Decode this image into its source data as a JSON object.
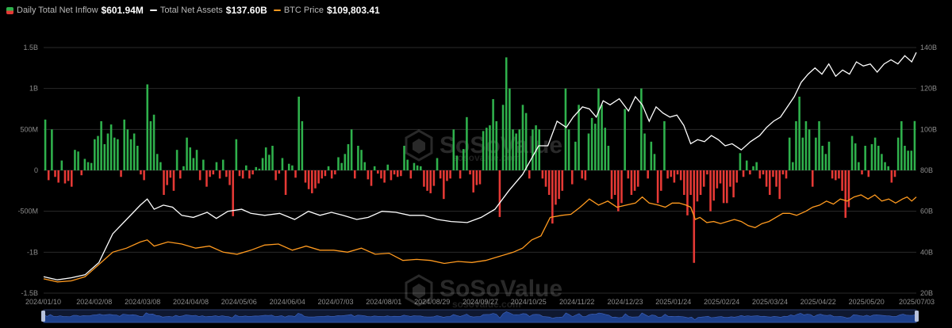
{
  "legend": {
    "inflow_label": "Daily Total Net Inflow",
    "inflow_value": "$601.94M",
    "assets_label": "Total Net Assets",
    "assets_value": "$137.60B",
    "btc_label": "BTC Price",
    "btc_value": "$109,803.41"
  },
  "watermark": {
    "brand": "SoSoValue",
    "site": "sosovalue.com"
  },
  "colors": {
    "positive_bar": "#2fb14c",
    "negative_bar": "#e53935",
    "assets_line": "#ffffff",
    "btc_line": "#ff9a1f",
    "grid": "#2a2a2a",
    "navigator": "#1d3f8a"
  },
  "chart_data": {
    "type": "bar",
    "title": "",
    "grid": true,
    "legend_position": "top-left",
    "x_tick_labels": [
      "2024/01/10",
      "2024/02/08",
      "2024/03/08",
      "2024/04/08",
      "2024/05/06",
      "2024/06/04",
      "2024/07/03",
      "2024/08/01",
      "2024/08/29",
      "2024/09/27",
      "2024/10/25",
      "2024/11/22",
      "2024/12/23",
      "2025/01/24",
      "2025/02/24",
      "2025/03/24",
      "2025/04/22",
      "2025/05/20",
      "2025/07/03"
    ],
    "left_axis": {
      "ticks": [
        "1.5B",
        "1B",
        "500M",
        "0",
        "-500M",
        "-1B",
        "-1.5B"
      ],
      "range": [
        -1500,
        1500
      ],
      "unit": "M"
    },
    "right_axis": {
      "ticks": [
        "140B",
        "120B",
        "100B",
        "80B",
        "60B",
        "40B",
        "20B"
      ],
      "range": [
        20,
        140
      ],
      "unit": "B"
    },
    "series": [
      {
        "name": "Daily Total Net Inflow",
        "type": "bar",
        "axis": "left",
        "values": [
          620,
          -120,
          500,
          -80,
          -150,
          120,
          -160,
          -130,
          -200,
          250,
          230,
          -60,
          140,
          100,
          90,
          380,
          420,
          600,
          320,
          450,
          560,
          400,
          380,
          -80,
          620,
          500,
          380,
          450,
          300,
          -50,
          -120,
          1050,
          600,
          680,
          200,
          100,
          -300,
          -180,
          -90,
          -250,
          250,
          -100,
          50,
          400,
          280,
          150,
          250,
          -120,
          130,
          -200,
          -80,
          -50,
          100,
          -100,
          130,
          -80,
          -180,
          -560,
          380,
          -70,
          -100,
          60,
          -100,
          -50,
          40,
          20,
          150,
          280,
          190,
          300,
          -120,
          -40,
          150,
          -300,
          80,
          60,
          -90,
          900,
          600,
          -150,
          -230,
          -280,
          -220,
          -160,
          -100,
          -70,
          50,
          -100,
          -50,
          160,
          90,
          200,
          320,
          500,
          -100,
          300,
          250,
          100,
          -110,
          -190,
          50,
          -40,
          -100,
          -150,
          70,
          -120,
          -50,
          -80,
          -70,
          300,
          130,
          -100,
          90,
          60,
          50,
          -200,
          -250,
          -280,
          -190,
          150,
          -100,
          -350,
          -130,
          -100,
          500,
          180,
          -100,
          260,
          650,
          -50,
          -270,
          -180,
          -170,
          480,
          520,
          550,
          870,
          600,
          -570,
          800,
          1380,
          1000,
          500,
          450,
          500,
          800,
          700,
          -100,
          500,
          550,
          500,
          -100,
          -200,
          -300,
          -650,
          -420,
          -350,
          -250,
          1000,
          500,
          -170,
          350,
          800,
          -100,
          -120,
          450,
          640,
          570,
          1000,
          800,
          520,
          300,
          -350,
          -300,
          -500,
          -400,
          750,
          -100,
          -300,
          -250,
          -200,
          1000,
          450,
          -100,
          350,
          200,
          -400,
          -250,
          600,
          -100,
          -80,
          -150,
          -50,
          -120,
          -300,
          -550,
          -300,
          -1130,
          -380,
          -300,
          -200,
          -50,
          -500,
          -370,
          -220,
          -160,
          -400,
          -400,
          -200,
          -330,
          -150,
          210,
          -80,
          120,
          -50,
          50,
          100,
          -100,
          -50,
          -200,
          -300,
          -80,
          -200,
          -350,
          -50,
          -100,
          400,
          100,
          600,
          900,
          400,
          600,
          500,
          -200,
          400,
          600,
          300,
          200,
          350,
          -100,
          -120,
          -100,
          -250,
          -580,
          -450,
          420,
          330,
          100,
          -50,
          300,
          -80,
          320,
          400,
          300,
          200,
          100,
          50,
          -150,
          -80,
          400,
          600,
          300,
          240,
          240,
          602
        ]
      },
      {
        "name": "Total Net Assets",
        "type": "line",
        "axis": "right",
        "unit": "B",
        "points": [
          [
            0,
            28
          ],
          [
            12,
            26.5
          ],
          [
            24,
            27.5
          ],
          [
            36,
            29
          ],
          [
            48,
            35
          ],
          [
            60,
            49
          ],
          [
            72,
            56
          ],
          [
            84,
            63
          ],
          [
            90,
            66
          ],
          [
            96,
            61
          ],
          [
            104,
            63
          ],
          [
            112,
            62
          ],
          [
            120,
            58
          ],
          [
            130,
            57
          ],
          [
            142,
            59.5
          ],
          [
            150,
            56.5
          ],
          [
            160,
            60
          ],
          [
            172,
            61
          ],
          [
            180,
            59
          ],
          [
            192,
            58
          ],
          [
            205,
            59
          ],
          [
            218,
            56
          ],
          [
            230,
            60
          ],
          [
            240,
            58
          ],
          [
            250,
            59.5
          ],
          [
            260,
            58
          ],
          [
            272,
            56
          ],
          [
            282,
            57
          ],
          [
            294,
            60
          ],
          [
            306,
            59.5
          ],
          [
            318,
            58
          ],
          [
            330,
            58
          ],
          [
            342,
            56
          ],
          [
            354,
            55
          ],
          [
            368,
            54.5
          ],
          [
            380,
            57
          ],
          [
            392,
            61
          ],
          [
            404,
            70
          ],
          [
            416,
            78
          ],
          [
            426,
            88
          ],
          [
            430,
            92
          ],
          [
            438,
            92
          ],
          [
            446,
            104
          ],
          [
            454,
            101
          ],
          [
            460,
            106
          ],
          [
            468,
            111
          ],
          [
            474,
            110
          ],
          [
            480,
            106
          ],
          [
            486,
            114
          ],
          [
            492,
            112
          ],
          [
            500,
            115
          ],
          [
            508,
            109
          ],
          [
            514,
            116
          ],
          [
            520,
            112
          ],
          [
            526,
            104
          ],
          [
            532,
            111
          ],
          [
            538,
            108
          ],
          [
            544,
            106
          ],
          [
            550,
            107
          ],
          [
            556,
            102
          ],
          [
            562,
            93
          ],
          [
            568,
            95
          ],
          [
            574,
            94
          ],
          [
            580,
            97
          ],
          [
            586,
            95
          ],
          [
            592,
            92
          ],
          [
            598,
            93
          ],
          [
            606,
            90
          ],
          [
            614,
            94
          ],
          [
            622,
            97
          ],
          [
            628,
            101
          ],
          [
            634,
            104
          ],
          [
            640,
            106
          ],
          [
            646,
            111
          ],
          [
            652,
            116
          ],
          [
            658,
            123
          ],
          [
            664,
            127
          ],
          [
            670,
            130
          ],
          [
            676,
            127
          ],
          [
            682,
            132
          ],
          [
            688,
            126
          ],
          [
            694,
            129
          ],
          [
            700,
            127
          ],
          [
            706,
            133
          ],
          [
            712,
            131
          ],
          [
            718,
            132
          ],
          [
            724,
            128
          ],
          [
            730,
            132
          ],
          [
            736,
            134
          ],
          [
            742,
            132
          ],
          [
            748,
            136
          ],
          [
            754,
            133
          ],
          [
            758,
            137.6
          ]
        ]
      },
      {
        "name": "BTC Price",
        "type": "line",
        "axis": "right",
        "unit": "B",
        "points": [
          [
            0,
            27
          ],
          [
            12,
            25.5
          ],
          [
            24,
            26
          ],
          [
            36,
            28
          ],
          [
            48,
            34
          ],
          [
            60,
            40
          ],
          [
            72,
            42
          ],
          [
            84,
            45
          ],
          [
            90,
            46
          ],
          [
            96,
            43
          ],
          [
            108,
            45
          ],
          [
            120,
            44
          ],
          [
            132,
            42
          ],
          [
            144,
            43
          ],
          [
            156,
            40
          ],
          [
            168,
            39
          ],
          [
            180,
            41
          ],
          [
            192,
            43.5
          ],
          [
            204,
            44
          ],
          [
            216,
            41
          ],
          [
            228,
            43
          ],
          [
            240,
            41
          ],
          [
            252,
            41
          ],
          [
            264,
            40
          ],
          [
            276,
            42
          ],
          [
            288,
            39
          ],
          [
            300,
            39.5
          ],
          [
            312,
            36
          ],
          [
            324,
            36.5
          ],
          [
            336,
            36
          ],
          [
            348,
            34.5
          ],
          [
            360,
            35.5
          ],
          [
            372,
            35
          ],
          [
            384,
            36
          ],
          [
            396,
            38
          ],
          [
            408,
            40
          ],
          [
            416,
            42
          ],
          [
            424,
            46
          ],
          [
            432,
            48
          ],
          [
            440,
            57
          ],
          [
            450,
            58
          ],
          [
            458,
            58.5
          ],
          [
            466,
            62
          ],
          [
            474,
            66
          ],
          [
            482,
            63
          ],
          [
            490,
            65
          ],
          [
            498,
            62
          ],
          [
            506,
            63
          ],
          [
            514,
            64
          ],
          [
            520,
            67
          ],
          [
            526,
            64
          ],
          [
            534,
            63
          ],
          [
            540,
            62
          ],
          [
            546,
            64
          ],
          [
            552,
            64
          ],
          [
            558,
            63
          ],
          [
            562,
            62
          ],
          [
            566,
            56
          ],
          [
            570,
            57
          ],
          [
            576,
            54.5
          ],
          [
            582,
            55
          ],
          [
            588,
            54
          ],
          [
            594,
            55
          ],
          [
            600,
            56
          ],
          [
            606,
            55
          ],
          [
            612,
            53
          ],
          [
            618,
            52
          ],
          [
            624,
            54
          ],
          [
            630,
            55
          ],
          [
            636,
            57
          ],
          [
            642,
            59
          ],
          [
            648,
            59
          ],
          [
            654,
            58
          ],
          [
            662,
            60
          ],
          [
            668,
            62
          ],
          [
            674,
            63
          ],
          [
            680,
            65
          ],
          [
            686,
            63.5
          ],
          [
            692,
            66
          ],
          [
            698,
            65
          ],
          [
            704,
            67
          ],
          [
            710,
            68
          ],
          [
            716,
            66
          ],
          [
            722,
            68
          ],
          [
            728,
            65
          ],
          [
            734,
            66
          ],
          [
            740,
            64
          ],
          [
            746,
            66
          ],
          [
            750,
            67
          ],
          [
            754,
            65
          ],
          [
            758,
            67
          ]
        ]
      }
    ]
  }
}
